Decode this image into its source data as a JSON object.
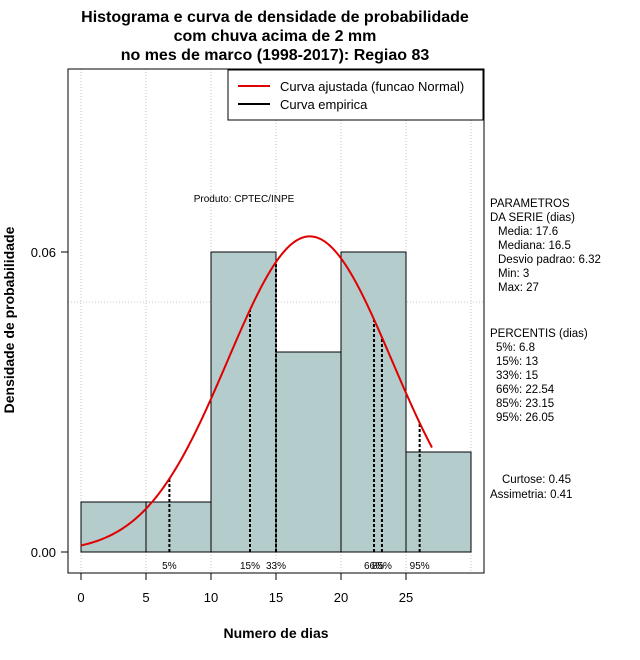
{
  "chart_data": {
    "type": "bar",
    "title_lines": [
      "Histograma e curva de densidade de probabilidade",
      "com chuva acima de 2 mm",
      "no mes de marco (1998-2017): Regiao 83"
    ],
    "xlabel": "Numero de dias",
    "ylabel": "Densidade de probabilidade",
    "xlim": [
      -1,
      31
    ],
    "ylim": [
      -0.0042,
      0.0966
    ],
    "x_ticks": [
      0,
      5,
      10,
      15,
      20,
      25
    ],
    "x_tick_labels": [
      "0",
      "5",
      "10",
      "15",
      "20",
      "25"
    ],
    "y_ticks": [
      0.0,
      0.06
    ],
    "y_tick_labels": [
      "0.00",
      "0.06"
    ],
    "x_grid": [
      0,
      5,
      10,
      15,
      20,
      25,
      30
    ],
    "y_grid": [
      0.05
    ],
    "bins": [
      {
        "x0": 0,
        "x1": 5,
        "density": 0.01
      },
      {
        "x0": 5,
        "x1": 10,
        "density": 0.01
      },
      {
        "x0": 10,
        "x1": 15,
        "density": 0.06
      },
      {
        "x0": 15,
        "x1": 20,
        "density": 0.04
      },
      {
        "x0": 20,
        "x1": 25,
        "density": 0.06
      },
      {
        "x0": 25,
        "x1": 30,
        "density": 0.02
      }
    ],
    "bar_color": "#b5cccc",
    "normal_curve": {
      "mean": 17.6,
      "sd": 6.32,
      "x_from": 0,
      "x_to": 27,
      "color": "#e00000"
    },
    "percentile_lines": [
      {
        "x": 6.8,
        "label": "5%"
      },
      {
        "x": 13,
        "label": "15%"
      },
      {
        "x": 15,
        "label": "33%"
      },
      {
        "x": 22.54,
        "label": "66%"
      },
      {
        "x": 23.15,
        "label": "85%"
      },
      {
        "x": 26.05,
        "label": "95%"
      }
    ],
    "legend": {
      "position": "top-right",
      "entries": [
        {
          "label": "Curva ajustada (funcao Normal)",
          "color": "#e00000"
        },
        {
          "label": "Curva empirica",
          "color": "#000000"
        }
      ]
    },
    "annotation": "Produto: CPTEC/INPE"
  },
  "side_panel": {
    "parametros_title": [
      "PARAMETROS",
      "DA SERIE (dias)"
    ],
    "parametros": [
      "Media: 17.6",
      "Mediana: 16.5",
      "Desvio padrao: 6.32",
      "Min: 3",
      "Max: 27"
    ],
    "percentis_title": "PERCENTIS (dias)",
    "percentis": [
      "5%: 6.8",
      "15%: 13",
      "33%: 15",
      "66%: 22.54",
      "85%: 23.15",
      "95%: 26.05"
    ],
    "curtose": "Curtose: 0.45",
    "assimetria": "Assimetria: 0.41"
  }
}
